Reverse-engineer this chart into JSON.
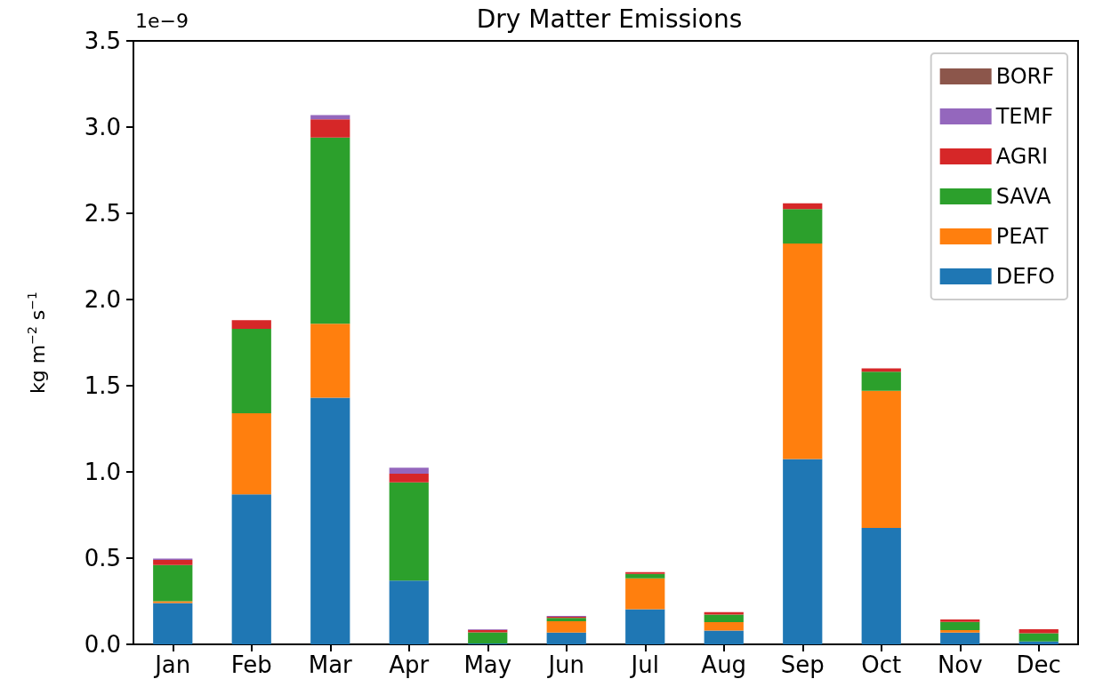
{
  "chart_data": {
    "type": "bar",
    "title": "Dry Matter Emissions",
    "ylabel": "kg m$^{−2}$ s$^{−1}$",
    "annotations": [
      "1e−9"
    ],
    "categories": [
      "Jan",
      "Feb",
      "Mar",
      "Apr",
      "May",
      "Jun",
      "Jul",
      "Aug",
      "Sep",
      "Oct",
      "Nov",
      "Dec"
    ],
    "stacked": true,
    "series": [
      {
        "name": "DEFO",
        "color": "#1f77b4",
        "values": [
          0.24,
          0.87,
          1.43,
          0.37,
          0.005,
          0.068,
          0.204,
          0.08,
          1.075,
          0.675,
          0.068,
          0.017
        ]
      },
      {
        "name": "PEAT",
        "color": "#ff7f0e",
        "values": [
          0.01,
          0.47,
          0.43,
          null,
          0,
          0.066,
          0.179,
          0.049,
          1.25,
          0.796,
          0.014,
          0
        ]
      },
      {
        "name": "SAVA",
        "color": "#2ca02c",
        "values": [
          0.21,
          0.49,
          1.08,
          0.57,
          0.065,
          0.019,
          0.026,
          0.044,
          0.2,
          0.11,
          0.048,
          0.048
        ]
      },
      {
        "name": "AGRI",
        "color": "#d62728",
        "values": [
          0.03,
          0.05,
          0.105,
          0.05,
          0.014,
          0.007,
          0.01,
          0.014,
          0.033,
          0.02,
          0.014,
          0.022
        ]
      },
      {
        "name": "TEMF",
        "color": "#9467bd",
        "values": [
          0.007,
          0,
          0.024,
          0.034,
          0.003,
          0.005,
          0,
          0,
          0,
          0,
          0,
          0
        ]
      },
      {
        "name": "BORF",
        "color": "#8c564b",
        "values": [
          0,
          0,
          0,
          0,
          0,
          0,
          0,
          0,
          0,
          0,
          0,
          0
        ]
      }
    ],
    "ylim": [
      0,
      3.5
    ],
    "yticks": [
      {
        "value": 0,
        "label": "0.0"
      },
      0.5,
      {
        "value": 1,
        "label": "1.0"
      },
      1.5,
      {
        "value": 2,
        "label": "2.0"
      },
      2.5,
      {
        "value": 3,
        "label": "3.0"
      },
      3.5
    ],
    "grid": false,
    "legend": "top right"
  }
}
